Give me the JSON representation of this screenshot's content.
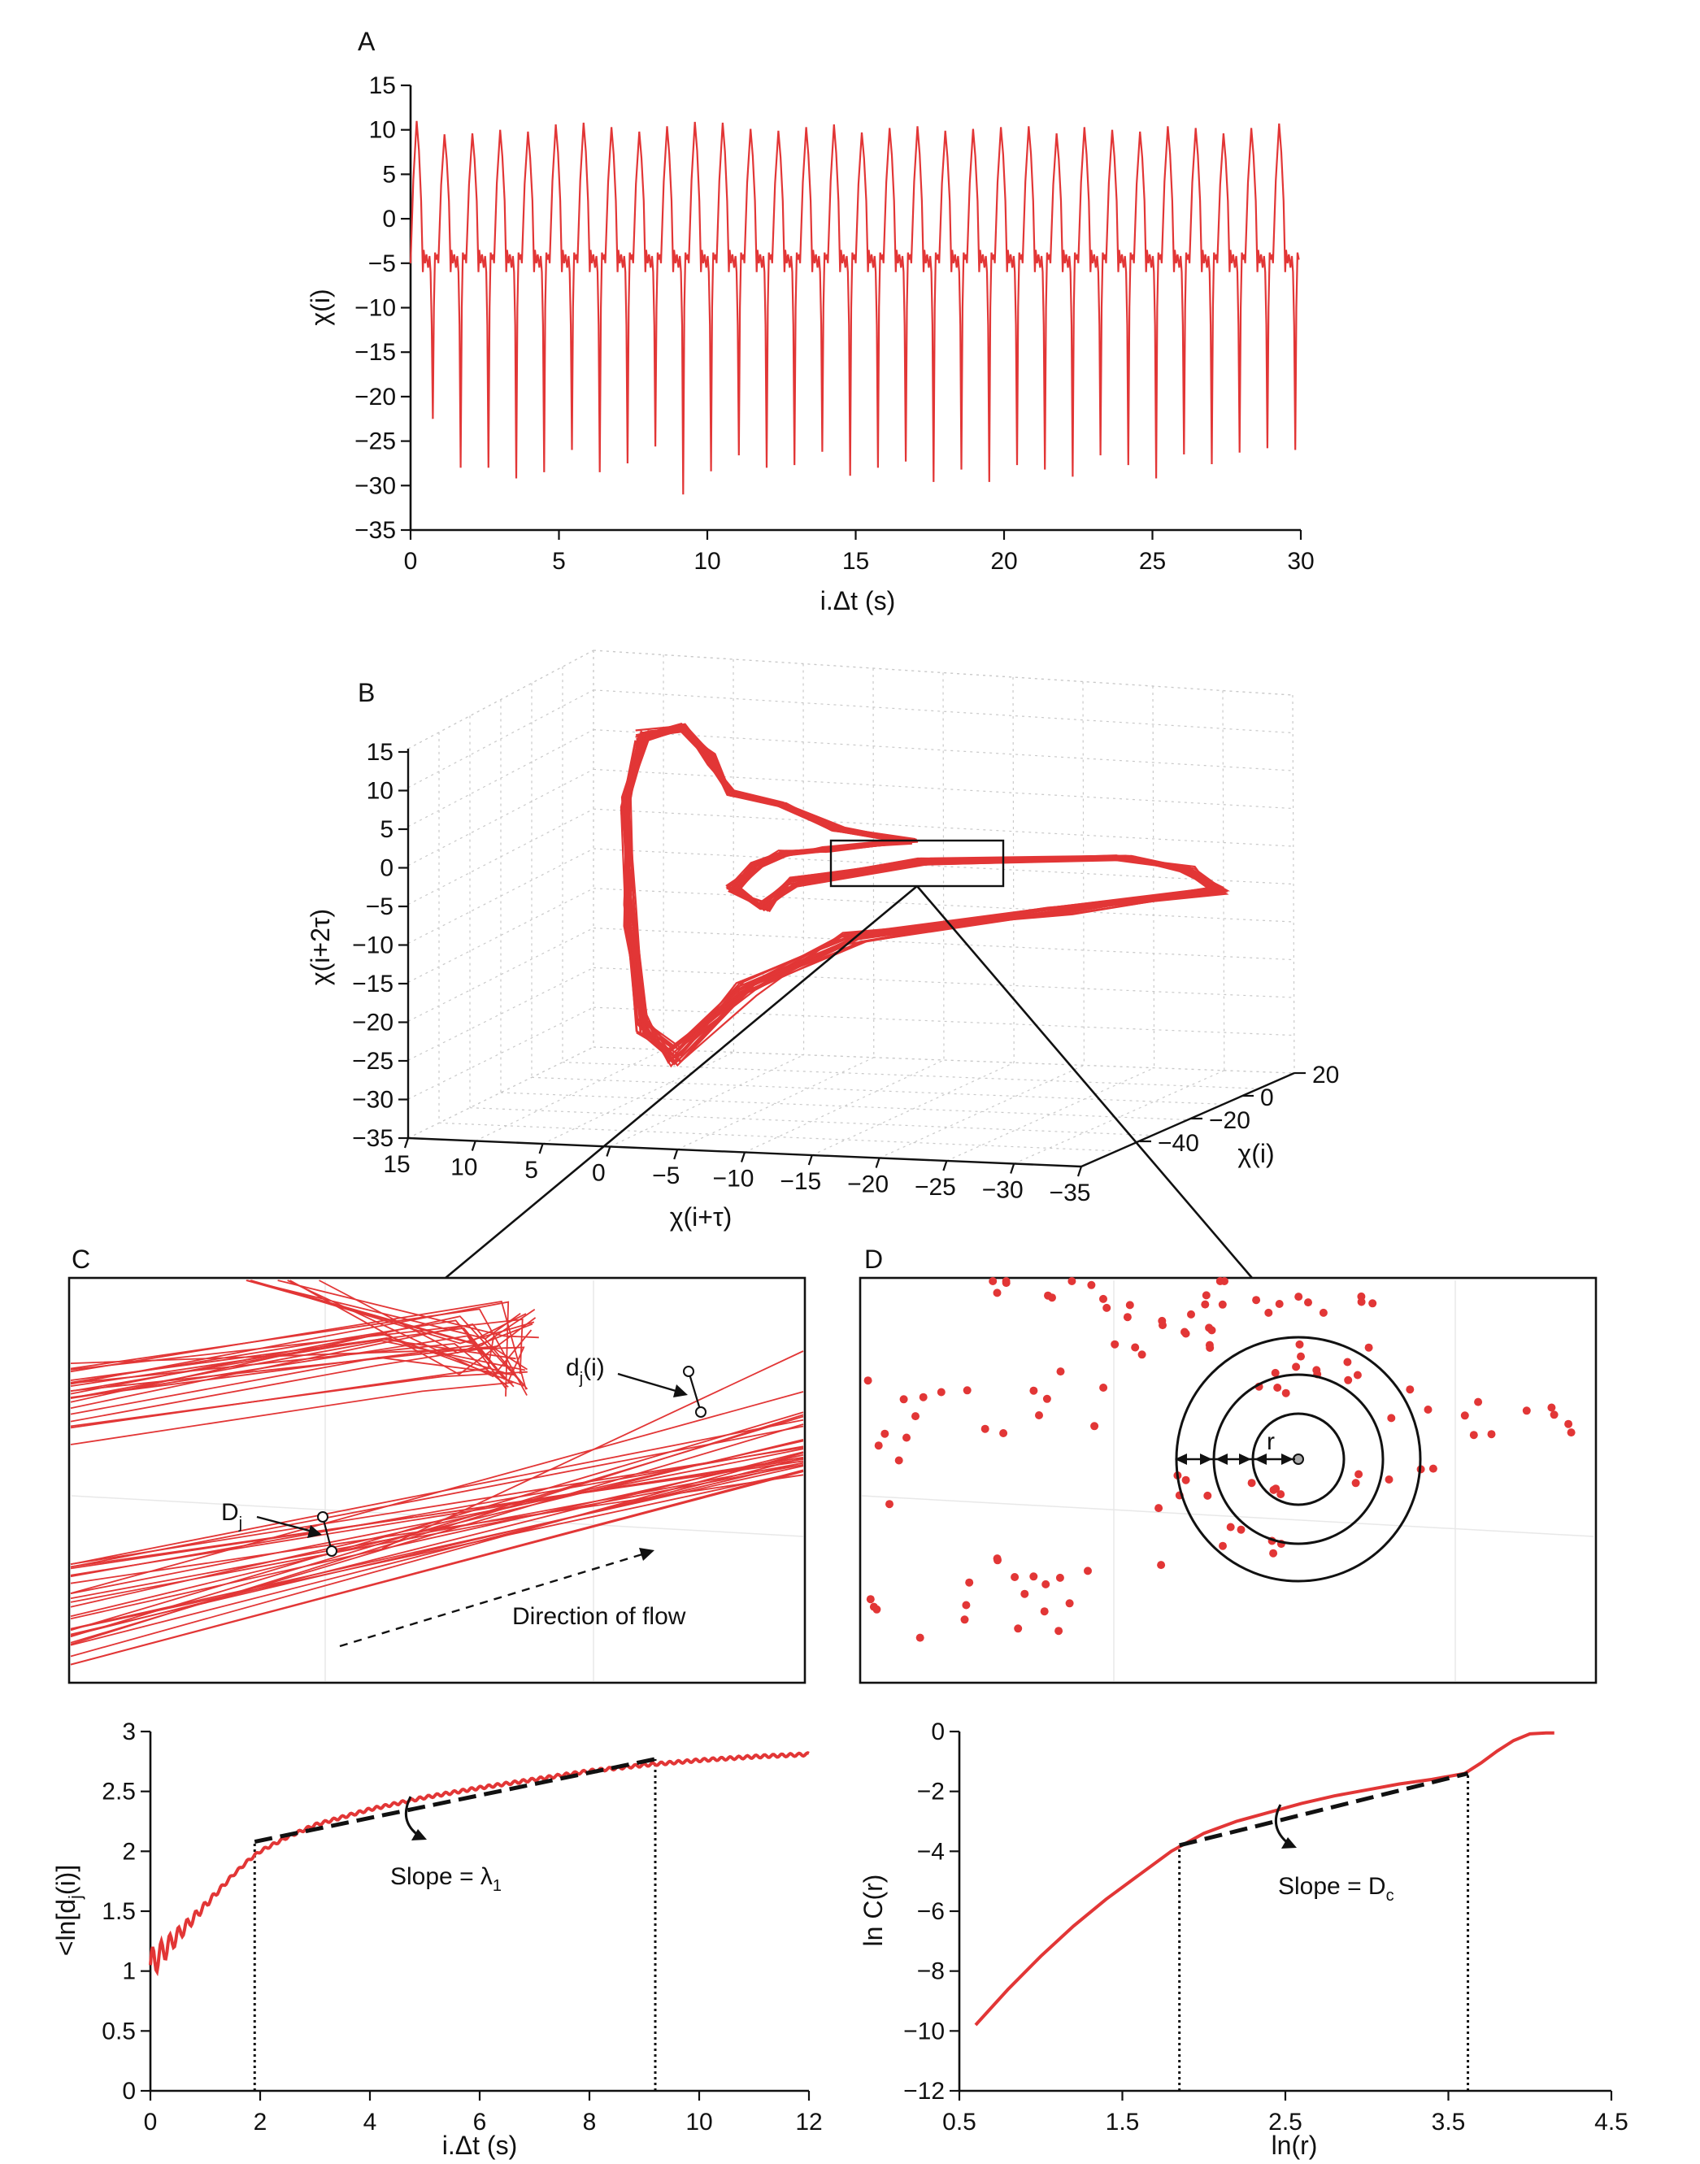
{
  "panels": {
    "A": {
      "label": "A"
    },
    "B": {
      "label": "B"
    },
    "C": {
      "label": "C",
      "annotations": {
        "dji": "d",
        "dji_sub": "j",
        "dji_tail": "(i)",
        "Dj": "D",
        "Dj_sub": "j",
        "flow": "Direction of flow"
      }
    },
    "D": {
      "label": "D",
      "annotations": {
        "r": "r"
      }
    },
    "E": {
      "annotation": "Slope = λ",
      "annotation_sub": "1"
    },
    "F": {
      "annotation": "Slope = D",
      "annotation_sub": "c"
    }
  },
  "colors": {
    "series": "#e23636",
    "fit": "#111111"
  },
  "chart_data": [
    {
      "panel": "A",
      "type": "line",
      "xlabel": "i.Δt (s)",
      "ylabel": "χ(i)",
      "xlim": [
        0,
        30
      ],
      "ylim": [
        -35,
        15
      ],
      "xticks": [
        0,
        5,
        10,
        15,
        20,
        25,
        30
      ],
      "yticks": [
        15,
        10,
        5,
        0,
        -5,
        -10,
        -15,
        -20,
        -25,
        -30,
        -35
      ],
      "series": [
        {
          "description_values": "periodic signal, ~0.92 s period",
          "peaks": [
            11.0,
            9.5,
            9.6,
            10.0,
            9.8,
            10.6,
            10.8,
            10.3,
            9.8,
            10.4,
            10.9,
            10.8,
            10.1,
            9.9,
            10.3,
            10.6,
            9.7,
            10.2,
            10.4,
            9.9,
            10.1,
            10.3,
            10.4,
            9.6,
            10.3,
            10.0,
            9.8,
            10.4,
            10.2,
            9.6,
            10.2,
            10.7
          ],
          "troughs": [
            -22.5,
            -28.0,
            -28.0,
            -29.2,
            -28.5,
            -26.0,
            -28.5,
            -27.5,
            -25.6,
            -31.0,
            -28.4,
            -26.6,
            -28.0,
            -27.7,
            -26.2,
            -28.9,
            -28.0,
            -27.3,
            -29.6,
            -28.2,
            -29.6,
            -27.7,
            -28.2,
            -29.0,
            -26.6,
            -27.7,
            -29.2,
            -26.5,
            -27.6,
            -26.3,
            -25.8,
            -26.0
          ]
        }
      ]
    },
    {
      "panel": "B",
      "type": "scatter",
      "xlabel": "χ(i+τ)",
      "ylabel": "χ(i+2τ)",
      "zlabel": "χ(i)",
      "xticks": [
        15,
        10,
        5,
        0,
        -5,
        -10,
        -15,
        -20,
        -25,
        -30,
        -35
      ],
      "yticks": [
        15,
        10,
        5,
        0,
        -5,
        -10,
        -15,
        -20,
        -25,
        -30,
        -35
      ],
      "zticks": [
        20,
        0,
        -20,
        -40
      ]
    },
    {
      "panel": "E",
      "type": "line",
      "xlabel": "i.Δt (s)",
      "ylabel": "<ln[d",
      "ylabel_sub": "j",
      "ylabel_tail": "(i)]",
      "xlim": [
        0,
        12
      ],
      "ylim": [
        0,
        3
      ],
      "xticks": [
        0,
        2,
        4,
        6,
        8,
        10,
        12
      ],
      "yticks": [
        0,
        0.5,
        1,
        1.5,
        2,
        2.5,
        3
      ],
      "series": [
        {
          "x": [
            0,
            0.2,
            0.5,
            0.8,
            1.0,
            1.2,
            1.5,
            1.8,
            2.0,
            2.5,
            3.0,
            4.0,
            5.0,
            6.0,
            7.0,
            8.0,
            9.0,
            10.0,
            11.0,
            12.0
          ],
          "y": [
            1.05,
            1.15,
            1.3,
            1.45,
            1.55,
            1.65,
            1.8,
            1.93,
            2.0,
            2.12,
            2.22,
            2.35,
            2.45,
            2.53,
            2.6,
            2.67,
            2.72,
            2.76,
            2.79,
            2.81
          ]
        }
      ],
      "fit": {
        "x": [
          1.9,
          9.2
        ],
        "y": [
          2.08,
          2.77
        ]
      },
      "markers_x": [
        1.9,
        9.2
      ]
    },
    {
      "panel": "F",
      "type": "line",
      "xlabel": "ln(r)",
      "ylabel": "ln C(r)",
      "xlim": [
        0.5,
        4.5
      ],
      "ylim": [
        -12,
        0
      ],
      "xticks": [
        0.5,
        1.5,
        2.5,
        3.5,
        4.5
      ],
      "yticks": [
        0,
        -2,
        -4,
        -6,
        -8,
        -10,
        -12
      ],
      "series": [
        {
          "x": [
            0.6,
            0.8,
            1.0,
            1.2,
            1.4,
            1.6,
            1.8,
            2.0,
            2.2,
            2.4,
            2.6,
            2.8,
            3.0,
            3.2,
            3.4,
            3.6,
            3.7,
            3.8,
            3.9,
            4.0,
            4.1,
            4.15
          ],
          "y": [
            -9.8,
            -8.6,
            -7.5,
            -6.5,
            -5.6,
            -4.8,
            -4.0,
            -3.4,
            -3.0,
            -2.7,
            -2.4,
            -2.15,
            -1.95,
            -1.75,
            -1.6,
            -1.4,
            -1.05,
            -0.65,
            -0.3,
            -0.08,
            -0.05,
            -0.05
          ]
        }
      ],
      "fit": {
        "x": [
          1.85,
          3.62
        ],
        "y": [
          -3.8,
          -1.4
        ]
      },
      "markers_x": [
        1.85,
        3.62
      ]
    }
  ]
}
